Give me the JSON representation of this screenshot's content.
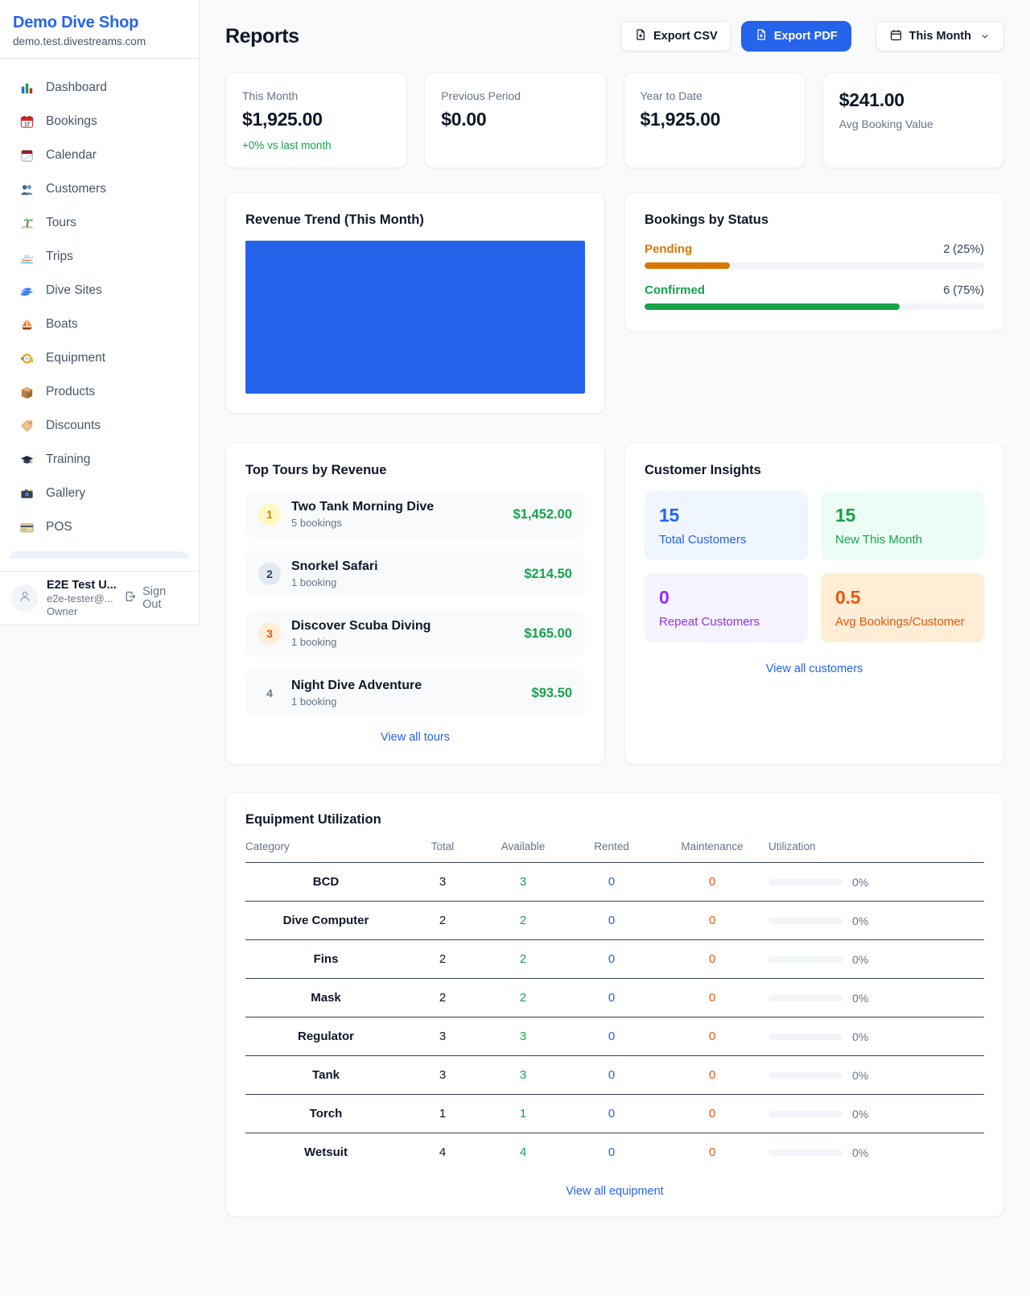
{
  "theme": {
    "primary": "#2563eb",
    "green": "#16a34a",
    "pending_orange": "#d97706",
    "maintenance_orange": "#ea580c",
    "purple": "#9333ea",
    "muted": "#64748b",
    "background": "#f8fafc",
    "chart_bar": "#2563eb"
  },
  "sidebar": {
    "title": "Demo Dive Shop",
    "subdomain": "demo.test.divestreams.com",
    "items": [
      {
        "icon": "dashboard-icon",
        "label": "Dashboard"
      },
      {
        "icon": "bookings-icon",
        "label": "Bookings"
      },
      {
        "icon": "calendar-icon",
        "label": "Calendar"
      },
      {
        "icon": "customers-icon",
        "label": "Customers"
      },
      {
        "icon": "tours-icon",
        "label": "Tours"
      },
      {
        "icon": "trips-icon",
        "label": "Trips"
      },
      {
        "icon": "dive-sites-icon",
        "label": "Dive Sites"
      },
      {
        "icon": "boats-icon",
        "label": "Boats"
      },
      {
        "icon": "equipment-icon",
        "label": "Equipment"
      },
      {
        "icon": "products-icon",
        "label": "Products"
      },
      {
        "icon": "discounts-icon",
        "label": "Discounts"
      },
      {
        "icon": "training-icon",
        "label": "Training"
      },
      {
        "icon": "gallery-icon",
        "label": "Gallery"
      },
      {
        "icon": "pos-icon",
        "label": "POS"
      }
    ],
    "user": {
      "name": "E2E Test U...",
      "email": "e2e-tester@...",
      "role": "Owner",
      "signout": "Sign Out"
    }
  },
  "header": {
    "title": "Reports",
    "export_csv": "Export CSV",
    "export_pdf": "Export PDF",
    "period": "This Month"
  },
  "stats": [
    {
      "label": "This Month",
      "value": "$1,925.00",
      "delta": "+0% vs last month"
    },
    {
      "label": "Previous Period",
      "value": "$0.00"
    },
    {
      "label": "Year to Date",
      "value": "$1,925.00"
    },
    {
      "label": "Avg Booking Value",
      "value": "$241.00"
    }
  ],
  "revenue_trend": {
    "title": "Revenue Trend (This Month)"
  },
  "chart_data": {
    "type": "bar",
    "title": "Revenue Trend (This Month)",
    "categories": [
      "This Month"
    ],
    "series": [
      {
        "name": "Revenue",
        "values": [
          1925
        ]
      }
    ],
    "note": "single solid blue bar filling the entire plot area; no axes, ticks or labels visible"
  },
  "bookings_by_status": {
    "title": "Bookings by Status",
    "statuses": [
      {
        "label": "Pending",
        "value": "2 (25%)",
        "pct": 25,
        "color": "#d97706"
      },
      {
        "label": "Confirmed",
        "value": "6 (75%)",
        "pct": 75,
        "color": "#16a34a"
      }
    ]
  },
  "top_tours": {
    "title": "Top Tours by Revenue",
    "link": "View all tours",
    "items": [
      {
        "rank": "1",
        "name": "Two Tank Morning Dive",
        "bookings": "5 bookings",
        "revenue": "$1,452.00",
        "badge_bg": "#fef9c3",
        "badge_color": "#ca8a04"
      },
      {
        "rank": "2",
        "name": "Snorkel Safari",
        "bookings": "1 booking",
        "revenue": "$214.50",
        "badge_bg": "#e2e8f0",
        "badge_color": "#334155"
      },
      {
        "rank": "3",
        "name": "Discover Scuba Diving",
        "bookings": "1 booking",
        "revenue": "$165.00",
        "badge_bg": "#ffedd5",
        "badge_color": "#ea580c"
      },
      {
        "rank": "4",
        "name": "Night Dive Adventure",
        "bookings": "1 booking",
        "revenue": "$93.50",
        "badge_bg": "transparent",
        "badge_color": "#64748b"
      }
    ]
  },
  "customer_insights": {
    "title": "Customer Insights",
    "link": "View all customers",
    "tiles": [
      {
        "value": "15",
        "label": "Total Customers",
        "bg": "#eff6ff",
        "color": "#2563eb"
      },
      {
        "value": "15",
        "label": "New This Month",
        "bg": "#ecfdf5",
        "color": "#16a34a"
      },
      {
        "value": "0",
        "label": "Repeat Customers",
        "bg": "#f5f3ff",
        "color": "#9333ea"
      },
      {
        "value": "0.5",
        "label": "Avg Bookings/Customer",
        "bg": "#ffedd5",
        "color": "#ea580c"
      }
    ]
  },
  "equipment": {
    "title": "Equipment Utilization",
    "link": "View all equipment",
    "columns": [
      "Category",
      "Total",
      "Available",
      "Rented",
      "Maintenance",
      "Utilization"
    ],
    "rows": [
      {
        "category": "BCD",
        "total": "3",
        "available": "3",
        "rented": "0",
        "maintenance": "0",
        "utilization": "0%",
        "utilization_pct": 0
      },
      {
        "category": "Dive Computer",
        "total": "2",
        "available": "2",
        "rented": "0",
        "maintenance": "0",
        "utilization": "0%",
        "utilization_pct": 0
      },
      {
        "category": "Fins",
        "total": "2",
        "available": "2",
        "rented": "0",
        "maintenance": "0",
        "utilization": "0%",
        "utilization_pct": 0
      },
      {
        "category": "Mask",
        "total": "2",
        "available": "2",
        "rented": "0",
        "maintenance": "0",
        "utilization": "0%",
        "utilization_pct": 0
      },
      {
        "category": "Regulator",
        "total": "3",
        "available": "3",
        "rented": "0",
        "maintenance": "0",
        "utilization": "0%",
        "utilization_pct": 0
      },
      {
        "category": "Tank",
        "total": "3",
        "available": "3",
        "rented": "0",
        "maintenance": "0",
        "utilization": "0%",
        "utilization_pct": 0
      },
      {
        "category": "Torch",
        "total": "1",
        "available": "1",
        "rented": "0",
        "maintenance": "0",
        "utilization": "0%",
        "utilization_pct": 0
      },
      {
        "category": "Wetsuit",
        "total": "4",
        "available": "4",
        "rented": "0",
        "maintenance": "0",
        "utilization": "0%",
        "utilization_pct": 0
      }
    ]
  }
}
